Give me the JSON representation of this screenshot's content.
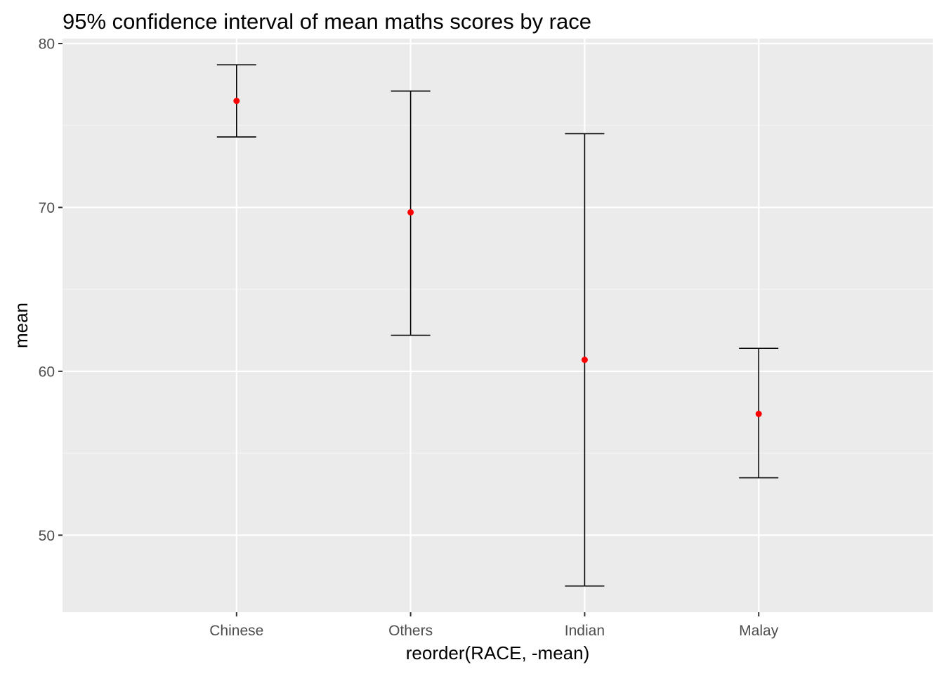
{
  "chart_data": {
    "type": "errorbar",
    "title": "95% confidence interval of mean maths scores by race",
    "xlabel": "reorder(RACE, -mean)",
    "ylabel": "mean",
    "categories": [
      "Chinese",
      "Others",
      "Indian",
      "Malay"
    ],
    "series": [
      {
        "mean": [
          76.5,
          69.7,
          60.7,
          57.4
        ],
        "lower": [
          74.3,
          62.2,
          46.9,
          53.5
        ],
        "upper": [
          78.7,
          77.1,
          74.5,
          61.4
        ]
      }
    ],
    "ylim": [
      45.3,
      80.3
    ],
    "yticks": [
      50,
      60,
      70,
      80
    ],
    "y_minor_ticks": [
      55,
      65,
      75
    ],
    "grid": true,
    "legend": "none",
    "colors": {
      "panel_background": "#ebebeb",
      "grid_major": "#ffffff",
      "grid_minor": "#f5f5f5",
      "errorbar": "#000000",
      "point": "#ff0000",
      "tick_label": "#4d4d4d",
      "tick_mark": "#333333"
    }
  }
}
